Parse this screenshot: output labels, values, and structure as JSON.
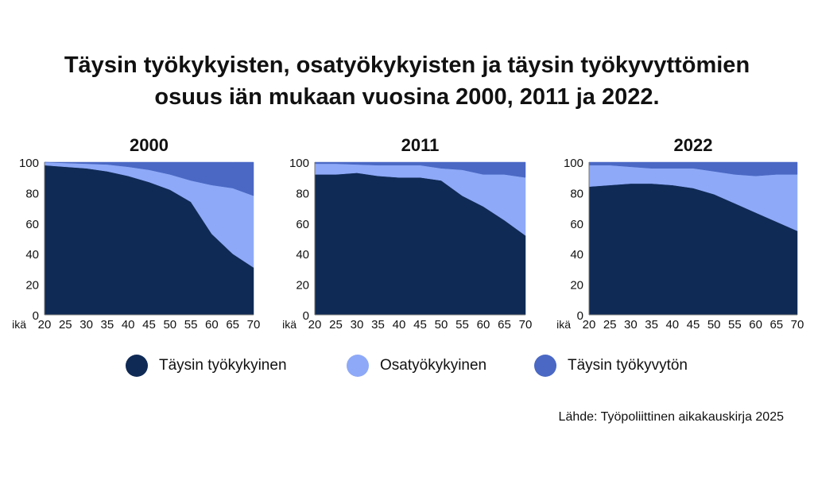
{
  "title_line1": "Täysin työkykyisten, osatyökykyisten ja täysin työkyvyttömien",
  "title_line2": "osuus iän mukaan vuosina 2000, 2011 ja 2022.",
  "source": "Lähde: Työpoliittinen aikakauskirja 2025",
  "colors": {
    "tyokykyinen": "#0f2a55",
    "osatyokykyinen": "#8ea9f7",
    "tyokyvyton": "#4a68c4"
  },
  "legend": [
    {
      "label": "Täysin työkykyinen",
      "color": "#0f2a55"
    },
    {
      "label": "Osatyökykyinen",
      "color": "#8ea9f7"
    },
    {
      "label": "Täysin työkyvytön",
      "color": "#4a68c4"
    }
  ],
  "chart_data": [
    {
      "type": "area",
      "title": "2000",
      "x": [
        20,
        25,
        30,
        35,
        40,
        45,
        50,
        55,
        60,
        65,
        70
      ],
      "xlabel": "ikä",
      "x_ticks": [
        "20",
        "25",
        "30",
        "35",
        "40",
        "45",
        "50",
        "55",
        "60",
        "65",
        "70"
      ],
      "y_ticks": [
        "0",
        "20",
        "40",
        "60",
        "80",
        "100"
      ],
      "ylim": [
        0,
        100
      ],
      "stacked": true,
      "series": [
        {
          "name": "Täysin työkykyinen",
          "values": [
            98,
            97,
            96,
            94,
            91,
            87,
            82,
            74,
            53,
            40,
            31
          ]
        },
        {
          "name": "Osatyökykyinen",
          "values": [
            2,
            2.5,
            3,
            4.5,
            6,
            8,
            10,
            14,
            32,
            43,
            47
          ]
        },
        {
          "name": "Täysin työkyvytön",
          "values": [
            0,
            0.5,
            1,
            1.5,
            3,
            5,
            8,
            12,
            15,
            17,
            22
          ]
        }
      ]
    },
    {
      "type": "area",
      "title": "2011",
      "x": [
        20,
        25,
        30,
        35,
        40,
        45,
        50,
        55,
        60,
        65,
        70
      ],
      "xlabel": "ikä",
      "x_ticks": [
        "20",
        "25",
        "30",
        "35",
        "40",
        "45",
        "50",
        "55",
        "60",
        "65",
        "70"
      ],
      "y_ticks": [
        "0",
        "20",
        "40",
        "60",
        "80",
        "100"
      ],
      "ylim": [
        0,
        100
      ],
      "stacked": true,
      "series": [
        {
          "name": "Täysin työkykyinen",
          "values": [
            92,
            92,
            93,
            91,
            90,
            90,
            88,
            78,
            71,
            62,
            52
          ]
        },
        {
          "name": "Osatyökykyinen",
          "values": [
            7,
            7,
            5.5,
            7,
            8,
            8,
            8,
            17,
            21,
            30,
            38
          ]
        },
        {
          "name": "Täysin työkyvytön",
          "values": [
            1,
            1,
            1.5,
            2,
            2,
            2,
            4,
            5,
            8,
            8,
            10
          ]
        }
      ]
    },
    {
      "type": "area",
      "title": "2022",
      "x": [
        20,
        25,
        30,
        35,
        40,
        45,
        50,
        55,
        60,
        65,
        70
      ],
      "xlabel": "ikä",
      "x_ticks": [
        "20",
        "25",
        "30",
        "35",
        "40",
        "45",
        "50",
        "55",
        "60",
        "65",
        "70"
      ],
      "y_ticks": [
        "0",
        "20",
        "40",
        "60",
        "80",
        "100"
      ],
      "ylim": [
        0,
        100
      ],
      "stacked": true,
      "series": [
        {
          "name": "Täysin työkykyinen",
          "values": [
            84,
            85,
            86,
            86,
            85,
            83,
            79,
            73,
            67,
            61,
            55
          ]
        },
        {
          "name": "Osatyökykyinen",
          "values": [
            14,
            13,
            11,
            10,
            11,
            13,
            15,
            19,
            24,
            31,
            37
          ]
        },
        {
          "name": "Täysin työkyvytön",
          "values": [
            2,
            2,
            3,
            4,
            4,
            4,
            6,
            8,
            9,
            8,
            8
          ]
        }
      ]
    }
  ]
}
